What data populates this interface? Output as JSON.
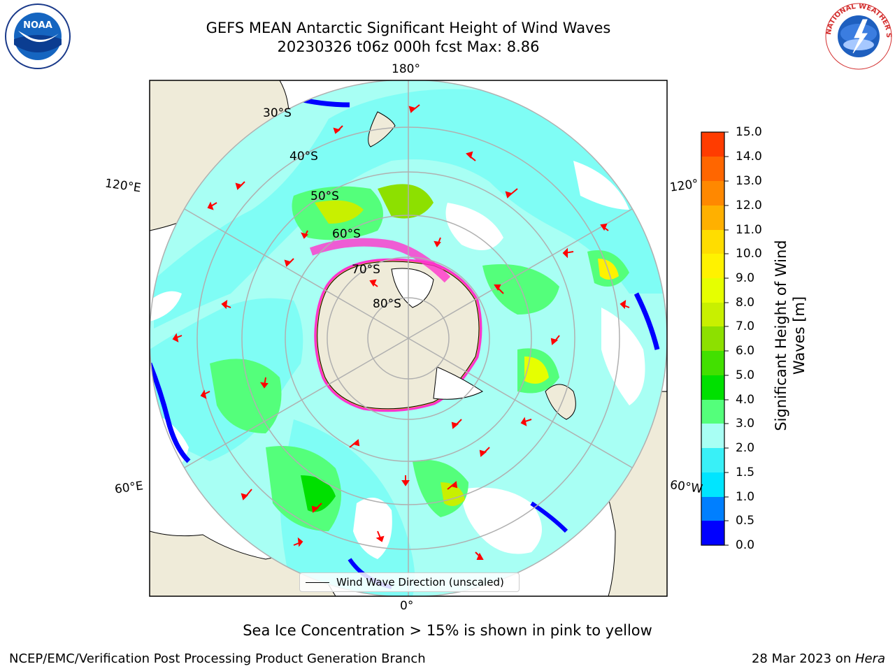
{
  "title": {
    "line1": "GEFS MEAN Antarctic Significant Height of Wind Waves",
    "line2": "20230326 t06z 000h fcst   Max: 8.86"
  },
  "logos": {
    "noara": "NOAA",
    "nws": "NATIONAL WEATHER SERVICE"
  },
  "map": {
    "longitude_labels": [
      "180°",
      "120°E",
      "120°",
      "60°E",
      "60°W",
      "0°"
    ],
    "latitude_labels": [
      "30°S",
      "40°S",
      "50°S",
      "60°S",
      "70°S",
      "80°S"
    ],
    "legend_label": "Wind Wave Direction (unscaled)",
    "colors": {
      "land": "#efebd9",
      "ice": "#ff33cc",
      "arrow": "#ff0000",
      "grid": "#b0b0b0"
    }
  },
  "colorbar": {
    "label": "Significant Height of Wind Waves [m]",
    "ticks": [
      "15.0",
      "14.0",
      "13.0",
      "12.0",
      "11.0",
      "10.0",
      "9.0",
      "8.0",
      "7.0",
      "6.0",
      "5.0",
      "4.0",
      "3.0",
      "2.0",
      "1.5",
      "1.0",
      "0.5",
      "0.0"
    ],
    "colors": [
      "#0000ff",
      "#007fff",
      "#00e5ff",
      "#39f0f7",
      "#7ffdf5",
      "#a8fff4",
      "#54ff7b",
      "#00e000",
      "#42e000",
      "#8de000",
      "#c8f000",
      "#e6ff00",
      "#fff200",
      "#ffdd00",
      "#ffb000",
      "#ff8800",
      "#ff6600",
      "#ff3c00",
      "#ff0000"
    ]
  },
  "footer": {
    "note": "Sea Ice Concentration > 15% is shown in pink to yellow",
    "credit_left": "NCEP/EMC/Verification Post Processing Product Generation Branch",
    "credit_right_date": "28 Mar 2023 on ",
    "credit_right_machine": "Hera"
  }
}
